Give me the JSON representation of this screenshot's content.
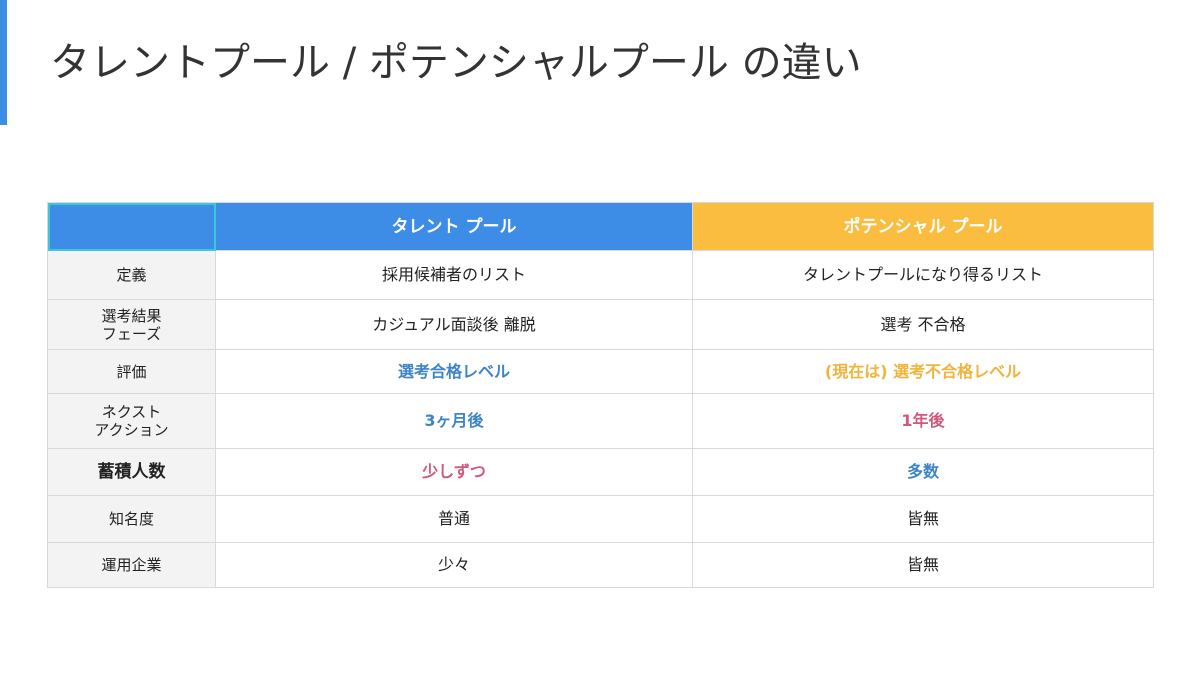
{
  "header": {
    "title": "タレントプール / ポテンシャルプール の違い"
  },
  "table": {
    "columns": [
      {
        "text": "タレント プール",
        "color": "#3d8ce6"
      },
      {
        "text": "ポテンシャル プール",
        "color": "#fbbd3f"
      }
    ],
    "rows": [
      {
        "label": [
          "定義"
        ],
        "cells": [
          {
            "text": "採用候補者のリスト"
          },
          {
            "text": "タレントプールになり得るリスト"
          }
        ]
      },
      {
        "label": [
          "選考結果",
          "フェーズ"
        ],
        "cells": [
          {
            "text": "カジュアル面談後 離脱"
          },
          {
            "text": "選考 不合格"
          }
        ]
      },
      {
        "label": [
          "評価"
        ],
        "cells": [
          {
            "text": "選考合格レベル",
            "color": "#3d85c6"
          },
          {
            "text": "(現在は) 選考不合格レベル",
            "color": "#f1b43a"
          }
        ]
      },
      {
        "label": [
          "ネクスト",
          "アクション"
        ],
        "cells": [
          {
            "text": "3ヶ月後",
            "color": "#3d85c6"
          },
          {
            "text": "1年後",
            "color": "#d0587b"
          }
        ]
      },
      {
        "label": [
          "蓄積人数"
        ],
        "cells": [
          {
            "text": "少しずつ",
            "color": "#d0587b"
          },
          {
            "text": "多数",
            "color": "#3d85c6"
          }
        ]
      },
      {
        "label": [
          "知名度"
        ],
        "cells": [
          {
            "text": "普通"
          },
          {
            "text": "皆無"
          }
        ]
      },
      {
        "label": [
          "運用企業"
        ],
        "cells": [
          {
            "text": "少々"
          },
          {
            "text": "皆無"
          }
        ]
      }
    ]
  }
}
